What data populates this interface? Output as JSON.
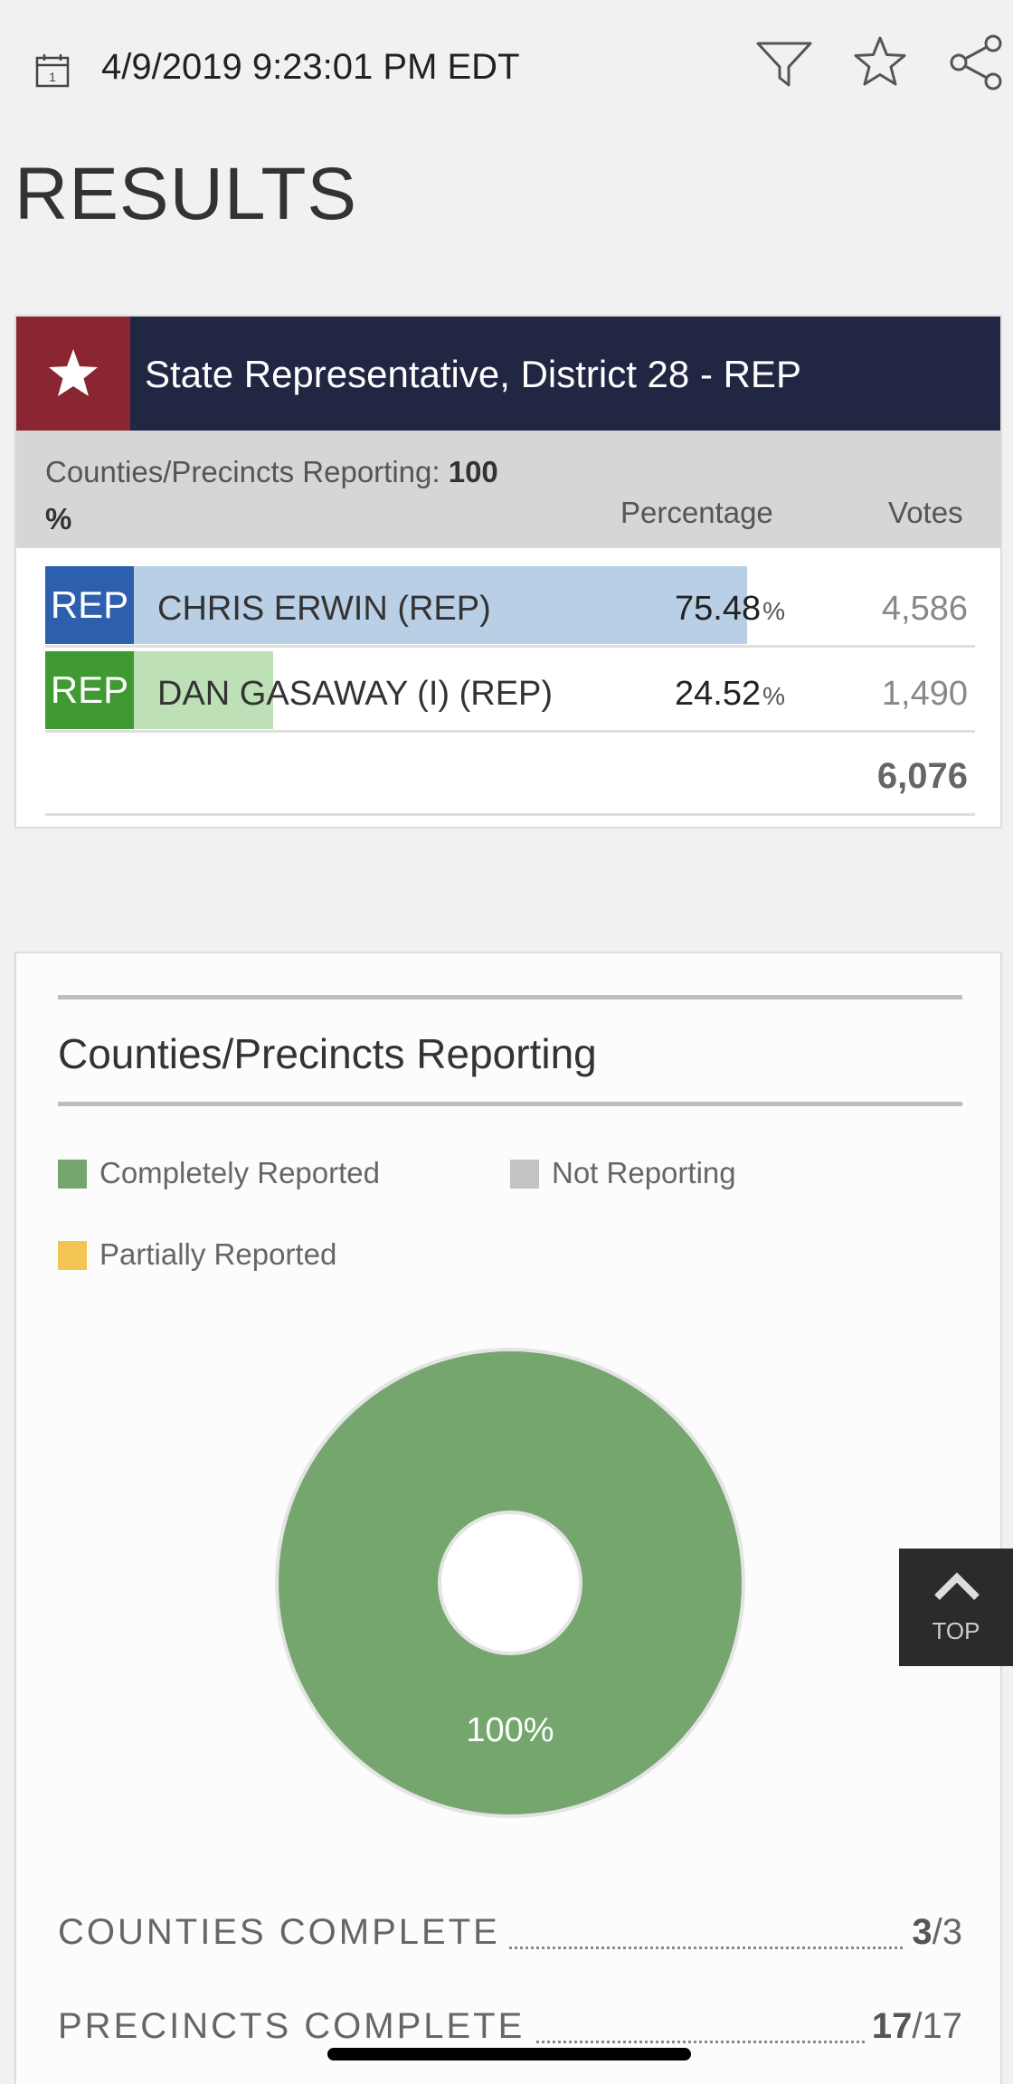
{
  "header": {
    "timestamp": "4/9/2019 9:23:01 PM EDT",
    "calendar_day": "1",
    "icons": [
      "calendar-icon",
      "filter-icon",
      "star-icon",
      "share-icon"
    ]
  },
  "page_title": "RESULTS",
  "race": {
    "title": "State Representative, District 28 - REP",
    "reporting_label": "Counties/Precincts Reporting:",
    "reporting_value": "100",
    "reporting_unit": "%",
    "percentage_header": "Percentage",
    "votes_header": "Votes",
    "candidates": [
      {
        "party": "REP",
        "name": "CHRIS ERWIN (REP)",
        "percent": "75.48",
        "percent_sign": "%",
        "votes": "4,586",
        "share": 0.7548,
        "color": "#2c5fae",
        "bar_color": "#b8cfe6"
      },
      {
        "party": "REP",
        "name": "DAN GASAWAY (I) (REP)",
        "percent": "24.52",
        "percent_sign": "%",
        "votes": "1,490",
        "share": 0.2452,
        "color": "#3f9a31",
        "bar_color": "#bde0b6"
      }
    ],
    "total_votes": "6,076",
    "colors": {
      "header_bg": "#212743",
      "star_bg": "#892631"
    }
  },
  "reporting_section": {
    "title": "Counties/Precincts Reporting",
    "legend": [
      {
        "label": "Completely Reported",
        "color": "#75a66e"
      },
      {
        "label": "Not Reporting",
        "color": "#c3c3c3"
      },
      {
        "label": "Partially Reported",
        "color": "#f3c552"
      }
    ],
    "donut": {
      "completely_reported_fraction": 1.0,
      "label": "100%"
    },
    "stats": [
      {
        "label": "COUNTIES COMPLETE",
        "value": "3",
        "total": "/3"
      },
      {
        "label": "PRECINCTS COMPLETE",
        "value": "17",
        "total": "/17"
      }
    ]
  },
  "top_button": {
    "label": "TOP"
  }
}
